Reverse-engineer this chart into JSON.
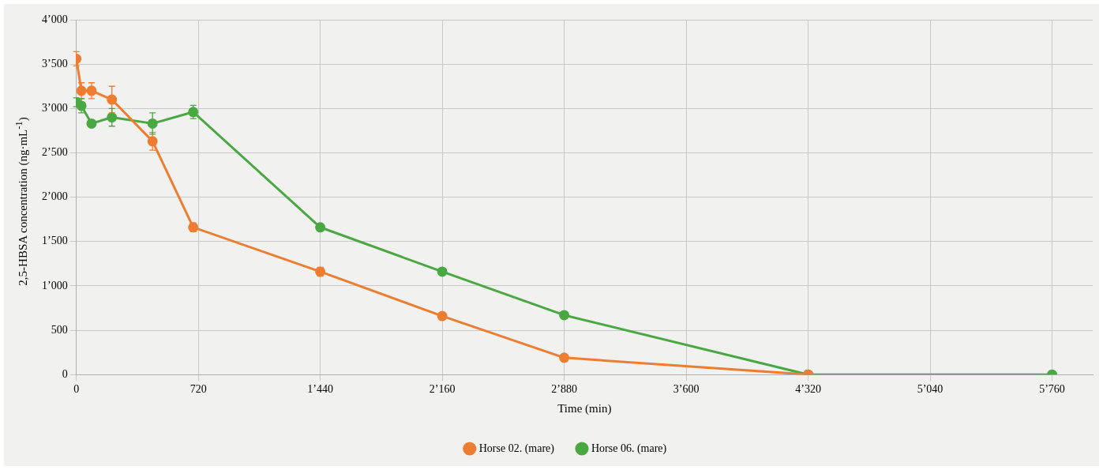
{
  "chart_data": {
    "type": "line",
    "xlabel": "Time (min)",
    "ylabel": "2,5-HBSA concentration (ng·mL$^{-1}$)",
    "xlim": [
      0,
      6000
    ],
    "xticks": [
      0,
      720,
      {
        "value": 1440,
        "label": "1’440"
      },
      {
        "value": 2160,
        "label": "2’160"
      },
      {
        "value": 2880,
        "label": "2’880"
      },
      {
        "value": 3600,
        "label": "3’600"
      },
      {
        "value": 4320,
        "label": "4’320"
      },
      {
        "value": 5040,
        "label": "5’040"
      },
      {
        "value": 5760,
        "label": "5’760"
      }
    ],
    "ylim": [
      0,
      4000
    ],
    "yticks": [
      0,
      500,
      {
        "value": 1000,
        "label": "1’000"
      },
      {
        "value": 1500,
        "label": "1’500"
      },
      {
        "value": 2000,
        "label": "2’000"
      },
      {
        "value": 2500,
        "label": "2’500"
      },
      {
        "value": 3000,
        "label": "3’000"
      },
      {
        "value": 3500,
        "label": "3’500"
      },
      {
        "value": 4000,
        "label": "4’000"
      }
    ],
    "grid": true,
    "legend": "bottom",
    "marker": "circle",
    "line_style": "solid",
    "series": [
      {
        "name": "Horse 02. (mare)",
        "color": "#ed7d31",
        "x": [
          0,
          30,
          90,
          210,
          450,
          690,
          1440,
          2160,
          2880,
          4320
        ],
        "values": [
          3560,
          3200,
          3200,
          3100,
          2630,
          1660,
          1160,
          660,
          190,
          0
        ],
        "errors": [
          80,
          90,
          90,
          150,
          100,
          50,
          50,
          40,
          null,
          null
        ]
      },
      {
        "name": "Horse 06. (mare)",
        "color": "#4aa843",
        "x": [
          0,
          30,
          90,
          210,
          450,
          690,
          1440,
          2160,
          2880,
          4320,
          5760
        ],
        "values": [
          3070,
          3030,
          2830,
          2900,
          2830,
          2960,
          1660,
          1160,
          670,
          0,
          0
        ],
        "errors": [
          50,
          80,
          null,
          100,
          120,
          75,
          null,
          null,
          null,
          null,
          null
        ]
      }
    ]
  }
}
